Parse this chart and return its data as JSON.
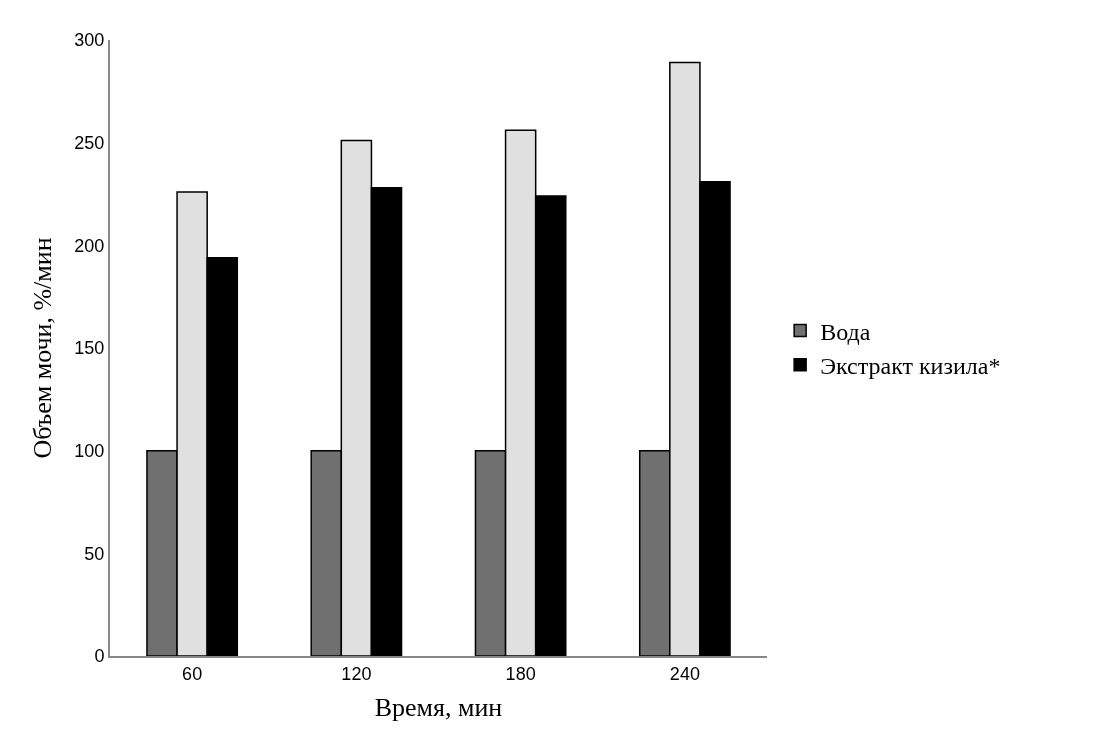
{
  "chart_data": {
    "type": "bar",
    "xlabel": "Время, мин",
    "ylabel": "Объем мочи, %/мин",
    "categories": [
      "60",
      "120",
      "180",
      "240"
    ],
    "series": [
      {
        "name": "Вода",
        "color": "#707070",
        "values": [
          100,
          100,
          100,
          100
        ]
      },
      {
        "color": "#e0e0e0",
        "values": [
          226,
          251,
          256,
          289
        ]
      },
      {
        "name": "Экстракт кизила*",
        "color": "#000000",
        "values": [
          194,
          228,
          224,
          231
        ]
      }
    ],
    "ylim": [
      0,
      300
    ],
    "yticks": [
      0,
      50,
      100,
      150,
      200,
      250,
      300
    ],
    "legend": "right"
  }
}
